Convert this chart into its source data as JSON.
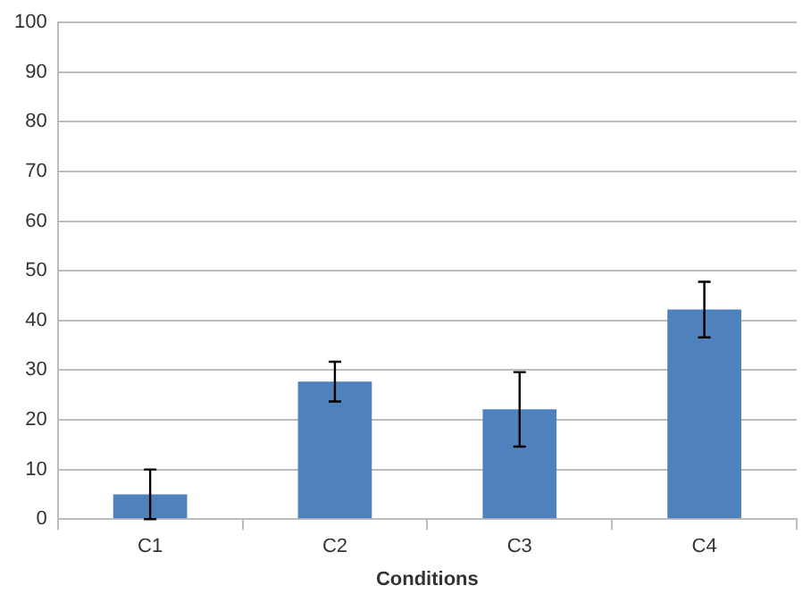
{
  "chart_data": {
    "type": "bar",
    "xlabel": "Conditions",
    "categories": [
      "C1",
      "C2",
      "C3",
      "C4"
    ],
    "series": [
      {
        "color": "#4f81bd",
        "values": [
          5,
          27.7,
          22.1,
          42.2
        ],
        "errors": [
          5,
          4,
          7.5,
          5.6
        ]
      }
    ],
    "ylim": [
      0,
      100
    ],
    "yticks": [
      0,
      10,
      20,
      30,
      40,
      50,
      60,
      70,
      80,
      90,
      100
    ],
    "grid": "y",
    "legend": false
  }
}
